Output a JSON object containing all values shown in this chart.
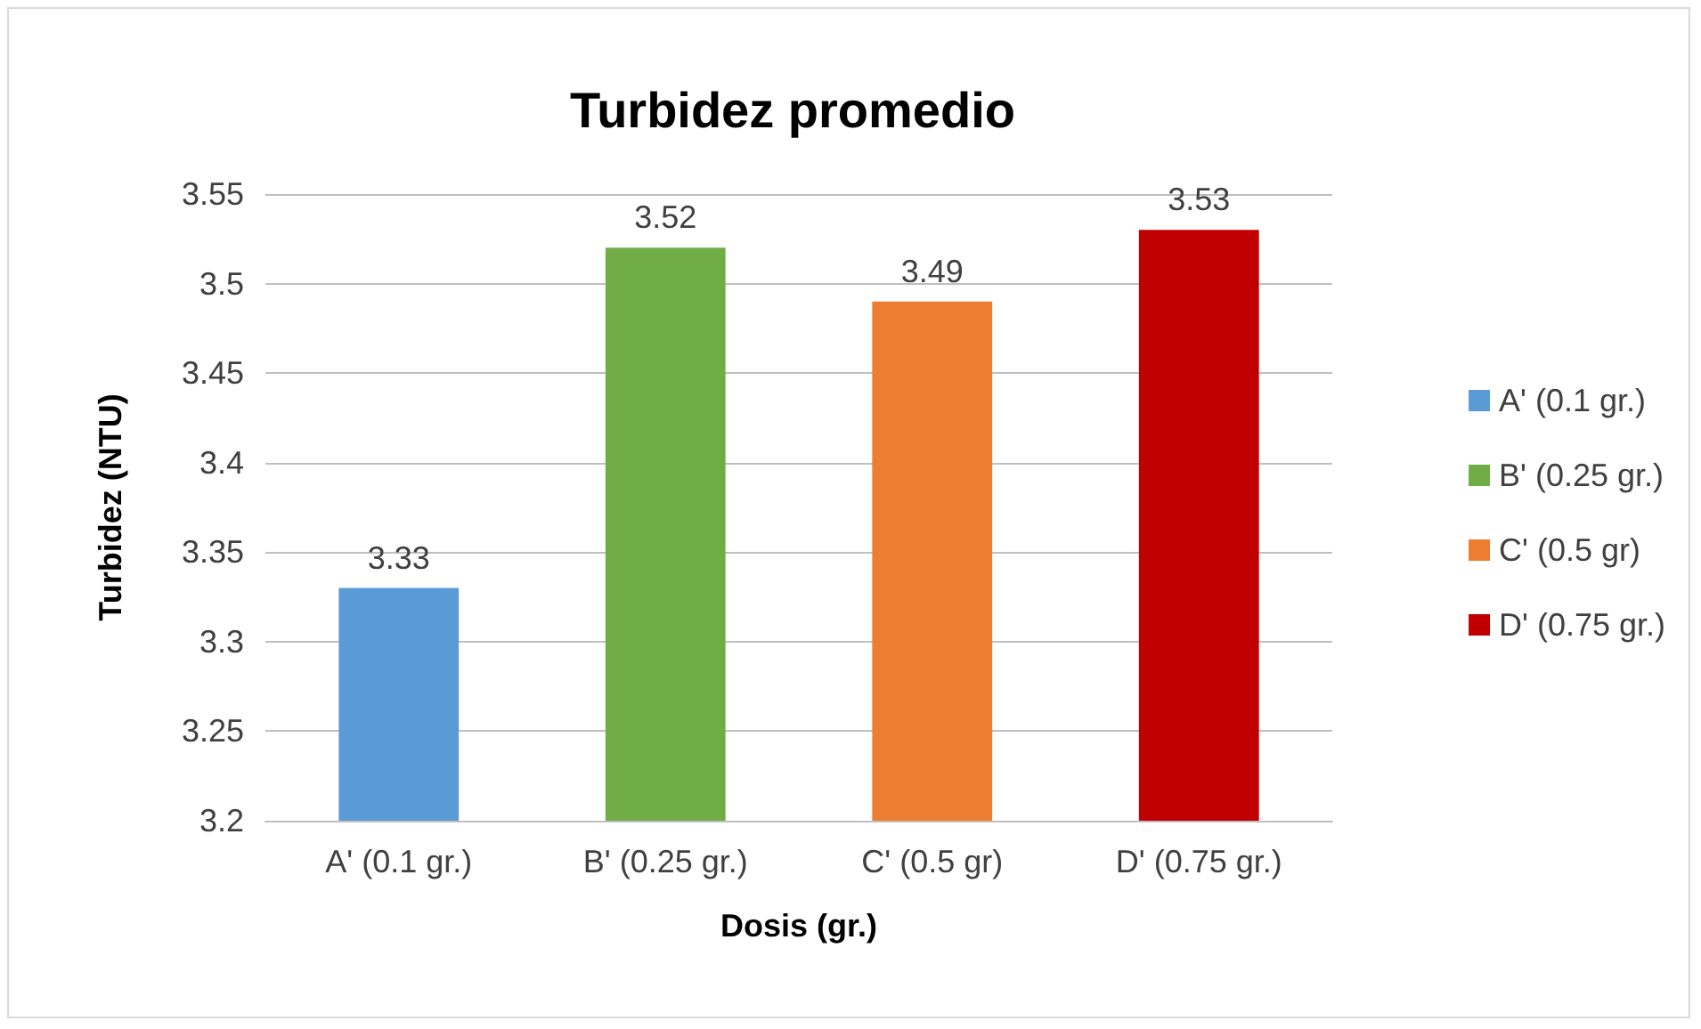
{
  "chart_data": {
    "type": "bar",
    "title": "Turbidez promedio",
    "xlabel": "Dosis (gr.)",
    "ylabel": "Turbidez (NTU)",
    "categories": [
      "A' (0.1 gr.)",
      "B' (0.25 gr.)",
      "C' (0.5 gr)",
      "D' (0.75 gr.)"
    ],
    "series": [
      {
        "name": "A' (0.1 gr.)",
        "color": "#5b9bd5",
        "values": [
          3.33,
          null,
          null,
          null
        ]
      },
      {
        "name": "B' (0.25 gr.)",
        "color": "#70ad47",
        "values": [
          null,
          3.52,
          null,
          null
        ]
      },
      {
        "name": "C' (0.5 gr)",
        "color": "#ed7d31",
        "values": [
          null,
          null,
          3.49,
          null
        ]
      },
      {
        "name": "D' (0.75 gr.)",
        "color": "#c00000",
        "values": [
          null,
          null,
          null,
          3.53
        ]
      }
    ],
    "ylim": [
      3.2,
      3.55
    ],
    "yticks": [
      3.2,
      3.25,
      3.3,
      3.35,
      3.4,
      3.45,
      3.5,
      3.55
    ],
    "grid": "y",
    "legend": "right",
    "data_labels": true
  }
}
